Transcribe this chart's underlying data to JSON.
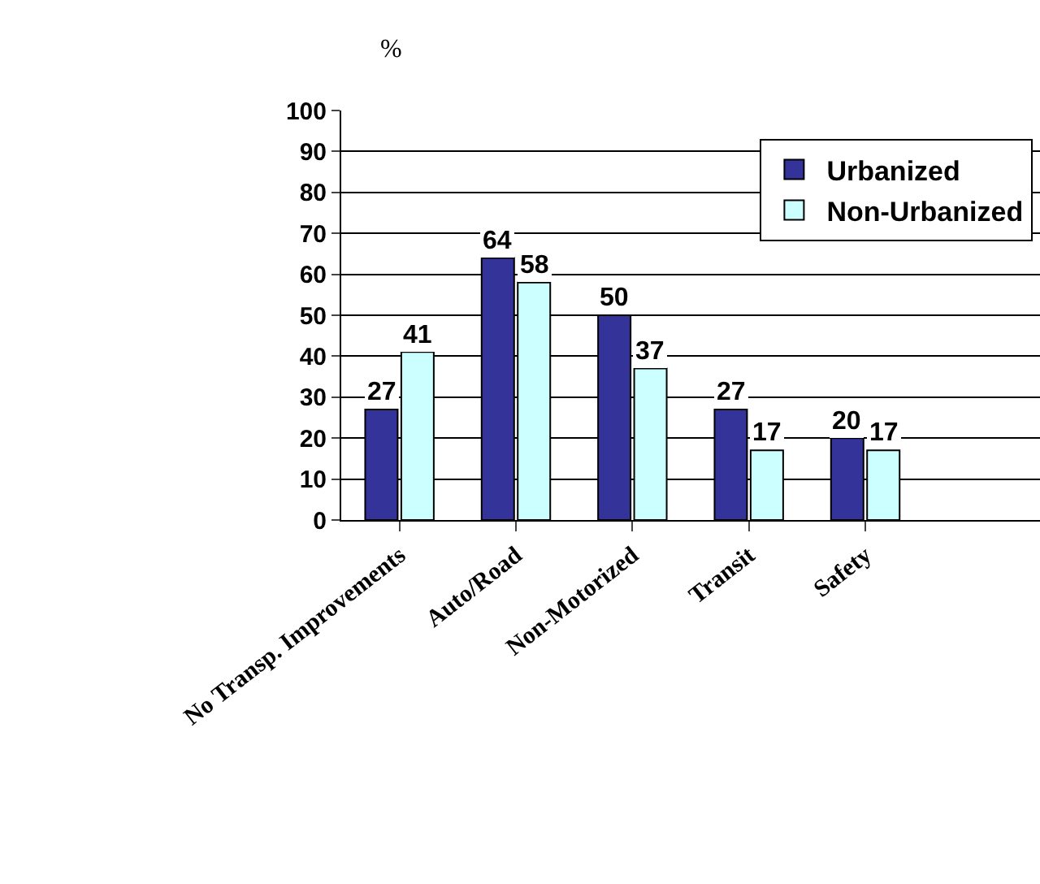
{
  "chart_data": {
    "type": "bar",
    "ylabel": "%",
    "categories": [
      "No Transp. Improvements",
      "Auto/Road",
      "Non-Motorized",
      "Transit",
      "Safety",
      null
    ],
    "series": [
      {
        "name": "Urbanized",
        "color": "#333399",
        "values": [
          27,
          64,
          50,
          27,
          20,
          null
        ]
      },
      {
        "name": "Non-Urbanized",
        "color": "#ccffff",
        "values": [
          41,
          58,
          37,
          17,
          17,
          null
        ]
      }
    ],
    "ylim": [
      0,
      100
    ],
    "yticks": [
      0,
      10,
      20,
      30,
      40,
      50,
      60,
      70,
      80,
      90,
      100
    ],
    "grid": "y",
    "legend": "top right",
    "data_labels": true
  }
}
